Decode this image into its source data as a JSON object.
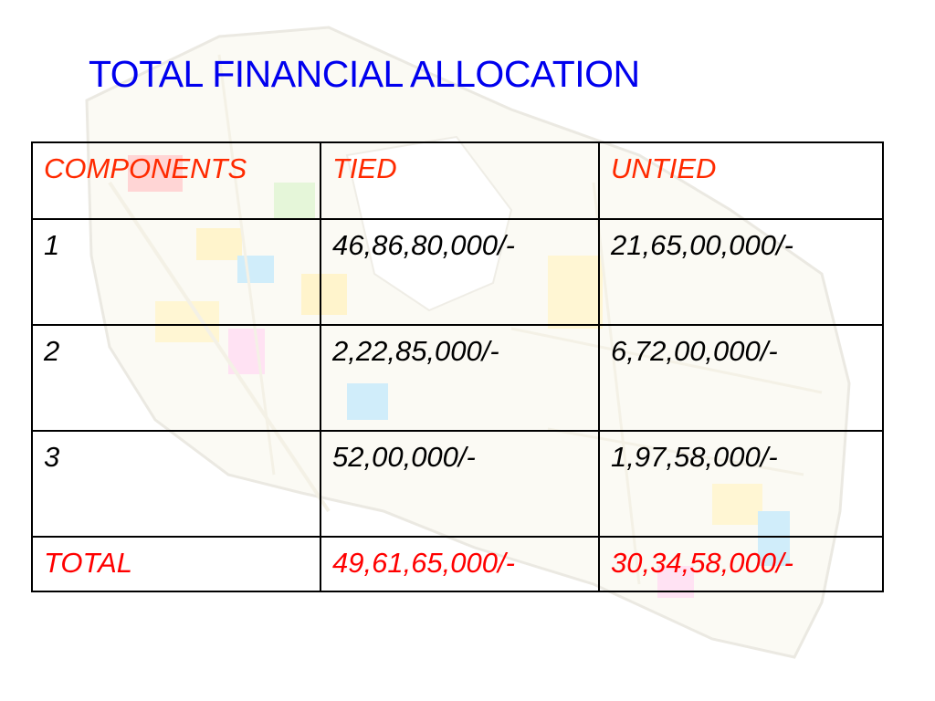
{
  "title": "TOTAL FINANCIAL ALLOCATION",
  "colors": {
    "title": "#0000ee",
    "header_text": "#ff2a00",
    "total_text": "#ff0000",
    "body_text": "#000000",
    "border": "#000000"
  },
  "table": {
    "headers": [
      "COMPONENTS",
      "TIED",
      "UNTIED"
    ],
    "rows": [
      [
        "1",
        "46,86,80,000/-",
        "21,65,00,000/-"
      ],
      [
        "2",
        "2,22,85,000/-",
        "6,72,00,000/-"
      ],
      [
        "3",
        "52,00,000/-",
        "1,97,58,000/-"
      ]
    ],
    "total": [
      "TOTAL",
      "49,61,65,000/-",
      "30,34,58,000/-"
    ]
  }
}
